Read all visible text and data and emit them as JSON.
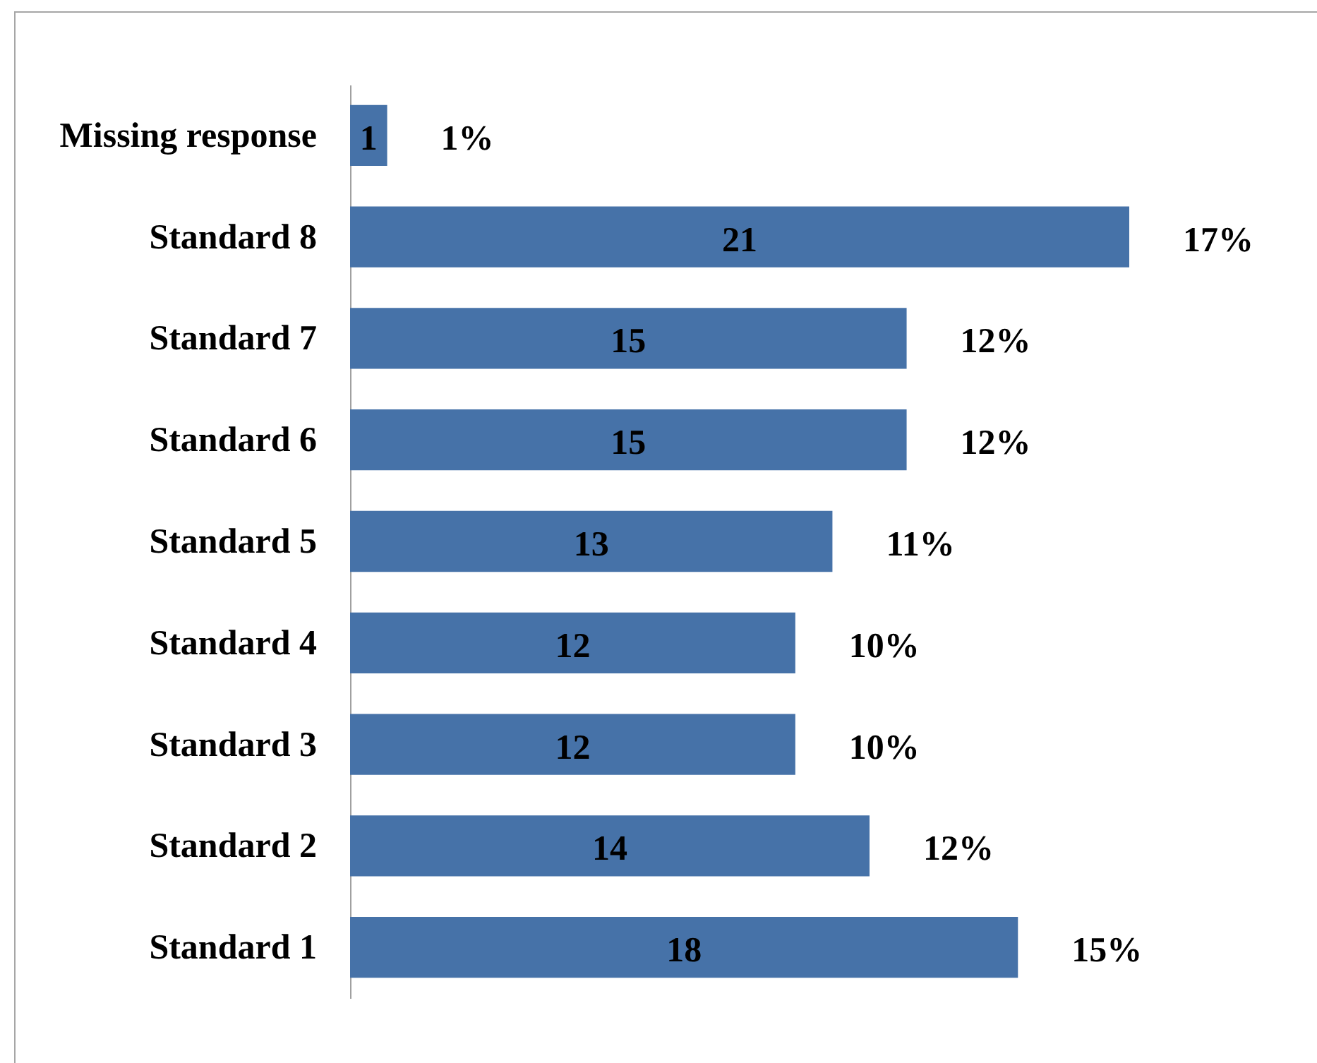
{
  "chart_data": {
    "type": "bar",
    "orientation": "horizontal",
    "categories": [
      "Missing response",
      "Standard 8",
      "Standard 7",
      "Standard 6",
      "Standard 5",
      "Standard 4",
      "Standard 3",
      "Standard 2",
      "Standard 1"
    ],
    "values": [
      1,
      21,
      15,
      15,
      13,
      12,
      12,
      14,
      18
    ],
    "color": "#4672a8",
    "data_labels": true,
    "tick_labels": "y",
    "annotations": [
      {
        "text": "1%",
        "x": 1,
        "y": "Missing response"
      },
      {
        "text": "17%",
        "x": 21,
        "y": "Standard 8"
      },
      {
        "text": "12%",
        "x": 15,
        "y": "Standard 7"
      },
      {
        "text": "12%",
        "x": 15,
        "y": "Standard 6"
      },
      {
        "text": "11%",
        "x": 13,
        "y": "Standard 5"
      },
      {
        "text": "10%",
        "x": 12,
        "y": "Standard 4"
      },
      {
        "text": "10%",
        "x": 12,
        "y": "Standard 3"
      },
      {
        "text": "12%",
        "x": 14,
        "y": "Standard 2"
      },
      {
        "text": "15%",
        "x": 18,
        "y": "Standard 1"
      }
    ]
  }
}
